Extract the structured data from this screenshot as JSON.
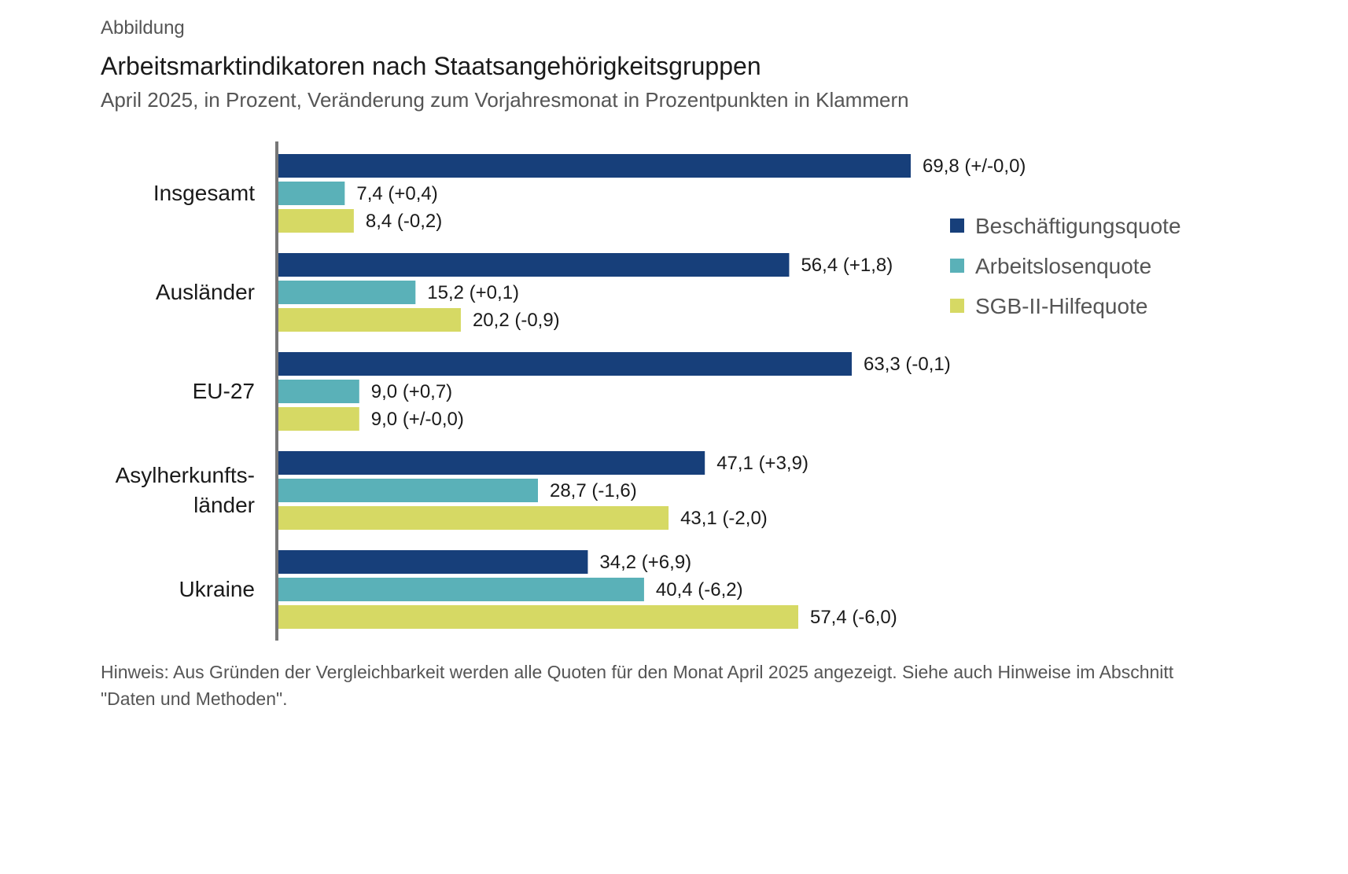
{
  "header": {
    "eyebrow": "Abbildung",
    "title": "Arbeitsmarktindikatoren nach Staatsangehörigkeitsgruppen",
    "subtitle": "April 2025, in Prozent, Veränderung zum Vorjahresmonat in Prozentpunkten in Klammern"
  },
  "chart_data": {
    "type": "bar",
    "orientation": "horizontal",
    "categories": [
      "Insgesamt",
      "Ausländer",
      "EU-27",
      "Asylherkunfts-länder",
      "Ukraine"
    ],
    "category_lines": [
      [
        "Insgesamt"
      ],
      [
        "Ausländer"
      ],
      [
        "EU-27"
      ],
      [
        "Asylherkunfts-",
        "länder"
      ],
      [
        "Ukraine"
      ]
    ],
    "series": [
      {
        "name": "Beschäftigungsquote",
        "color": "#173f7a",
        "values": [
          69.8,
          56.4,
          63.3,
          47.1,
          34.2
        ],
        "labels": [
          "69,8",
          "56,4",
          "63,3",
          "47,1",
          "34,2"
        ],
        "changes": [
          "(+/-0,0)",
          "(+1,8)",
          "(-0,1)",
          "(+3,9)",
          "(+6,9)"
        ]
      },
      {
        "name": "Arbeitslosenquote",
        "color": "#5ab1b8",
        "values": [
          7.4,
          15.2,
          9.0,
          28.7,
          40.4
        ],
        "labels": [
          "7,4",
          "15,2",
          "9,0",
          "28,7",
          "40,4"
        ],
        "changes": [
          "(+0,4)",
          "(+0,1)",
          "(+0,7)",
          "(-1,6)",
          "(-6,2)"
        ]
      },
      {
        "name": "SGB-II-Hilfequote",
        "color": "#d6d964",
        "values": [
          8.4,
          20.2,
          9.0,
          43.1,
          57.4
        ],
        "labels": [
          "8,4",
          "20,2",
          "9,0",
          "43,1",
          "57,4"
        ],
        "changes": [
          "(-0,2)",
          "(-0,9)",
          "(+/-0,0)",
          "(-2,0)",
          "(-6,0)"
        ]
      }
    ],
    "xlim": [
      0,
      80
    ],
    "grid": false,
    "legend_position": "right"
  },
  "footer": {
    "note": "Hinweis: Aus Gründen der Vergleichbarkeit werden alle Quoten für den Monat April 2025 angezeigt. Siehe auch Hinweise im Abschnitt \"Daten und Methoden\"."
  }
}
